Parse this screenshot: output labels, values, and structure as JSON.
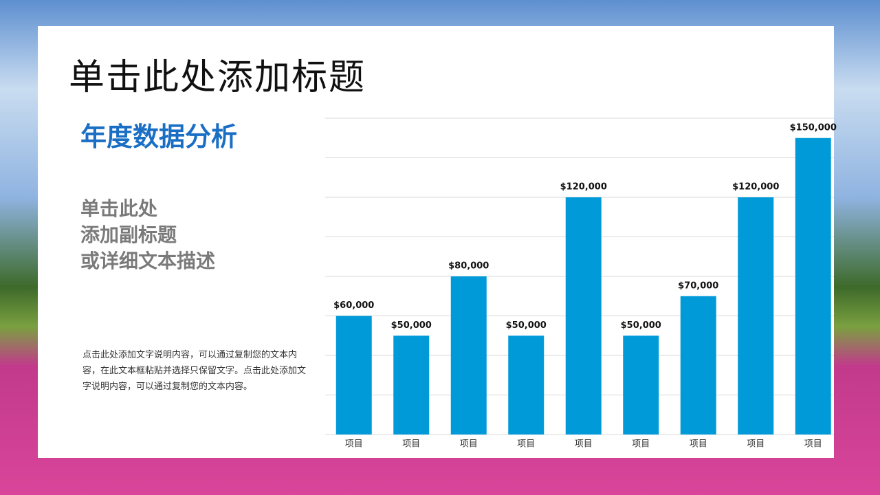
{
  "slide": {
    "title": "单击此处添加标题",
    "heading": "年度数据分析",
    "subtitle_lines": [
      "单击此处",
      "添加副标题",
      "或详细文本描述"
    ],
    "body": "点击此处添加文字说明内容，可以通过复制您的文本内容，在此文本框粘贴并选择只保留文字。点击此处添加文字说明内容，可以通过复制您的文本内容。"
  },
  "chart_data": {
    "type": "bar",
    "categories": [
      "项目",
      "项目",
      "项目",
      "项目",
      "项目",
      "项目",
      "项目",
      "项目",
      "项目"
    ],
    "values": [
      60000,
      50000,
      80000,
      50000,
      120000,
      50000,
      70000,
      120000,
      150000
    ],
    "value_labels": [
      "$60,000",
      "$50,000",
      "$80,000",
      "$50,000",
      "$120,000",
      "$50,000",
      "$70,000",
      "$120,000",
      "$150,000"
    ],
    "color": "#009ad9",
    "ylim": [
      0,
      160000
    ],
    "yticks": [
      0,
      20000,
      40000,
      60000,
      80000,
      100000,
      120000,
      140000,
      160000
    ],
    "grid": true
  }
}
